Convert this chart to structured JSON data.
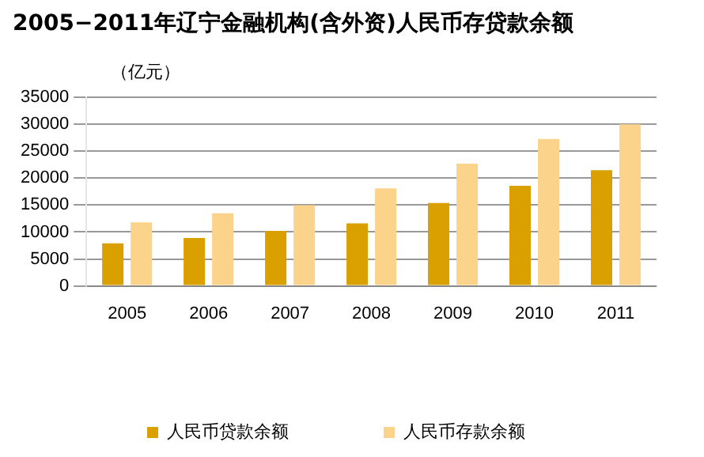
{
  "chart_data": {
    "type": "bar",
    "title": "2005−2011年辽宁金融机构(含外资)人民币存贷款余额",
    "ylabel": "（亿元）",
    "categories": [
      "2005",
      "2006",
      "2007",
      "2008",
      "2009",
      "2010",
      "2011"
    ],
    "series": [
      {
        "name": "人民币贷款余额",
        "color": "#d9a000",
        "values": [
          7900,
          8900,
          10200,
          11600,
          15400,
          18600,
          21500
        ]
      },
      {
        "name": "人民币存款余额",
        "color": "#fcd38a",
        "values": [
          11800,
          13500,
          15000,
          18100,
          22700,
          27300,
          30000
        ]
      }
    ],
    "ylim": [
      0,
      35000
    ],
    "yticks": [
      0,
      5000,
      10000,
      15000,
      20000,
      25000,
      30000,
      35000
    ],
    "grid": "y",
    "legend": "bottom"
  }
}
